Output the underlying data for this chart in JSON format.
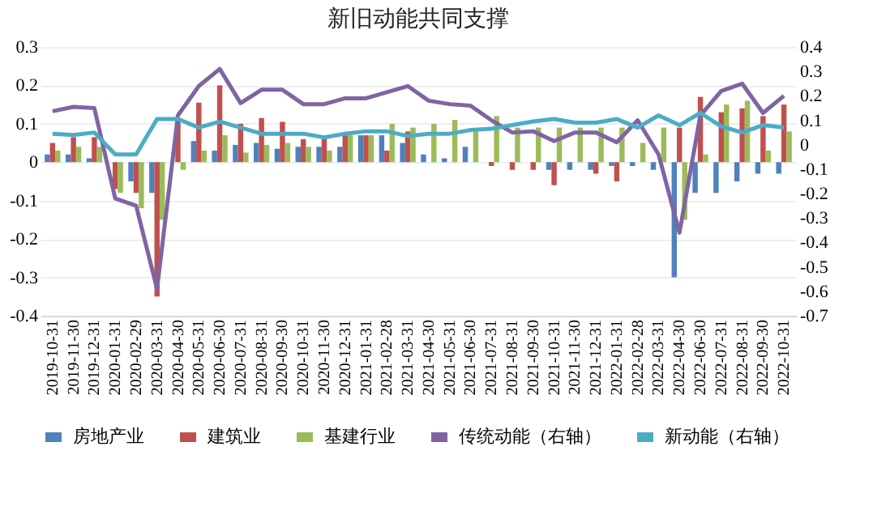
{
  "chart_data": {
    "type": "bar",
    "title": "新旧动能共同支撑",
    "categories": [
      "2019-10-31",
      "2019-11-30",
      "2019-12-31",
      "2020-01-31",
      "2020-02-29",
      "2020-03-31",
      "2020-04-30",
      "2020-05-31",
      "2020-06-30",
      "2020-07-31",
      "2020-08-31",
      "2020-09-30",
      "2020-10-31",
      "2020-11-30",
      "2020-12-31",
      "2021-01-31",
      "2021-02-28",
      "2021-03-31",
      "2021-04-30",
      "2021-05-31",
      "2021-06-30",
      "2021-07-31",
      "2021-08-31",
      "2021-09-30",
      "2021-10-31",
      "2021-11-30",
      "2021-12-31",
      "2022-01-31",
      "2022-02-28",
      "2022-03-31",
      "2022-04-30",
      "2022-06-30",
      "2022-07-31",
      "2022-08-31",
      "2022-09-30",
      "2022-10-31"
    ],
    "series": [
      {
        "name": "房地产业",
        "color": "#4f81bd",
        "values": [
          0.02,
          0.02,
          0.01,
          null,
          -0.05,
          -0.08,
          null,
          0.055,
          0.03,
          0.045,
          0.05,
          0.035,
          0.04,
          0.04,
          0.04,
          0.07,
          0.07,
          0.05,
          0.02,
          0.01,
          0.04,
          0,
          0,
          0,
          -0.02,
          -0.02,
          -0.02,
          -0.01,
          -0.01,
          -0.02,
          -0.3,
          -0.08,
          -0.08,
          -0.05,
          -0.03,
          -0.03
        ]
      },
      {
        "name": "建筑业",
        "color": "#c0504d",
        "values": [
          0.05,
          0.065,
          0.065,
          -0.07,
          -0.08,
          -0.35,
          0.11,
          0.155,
          0.2,
          0.1,
          0.115,
          0.105,
          0.06,
          0.06,
          0.07,
          0.07,
          0.03,
          0.08,
          0,
          0,
          0,
          -0.01,
          -0.02,
          -0.02,
          -0.06,
          0,
          -0.03,
          -0.05,
          0,
          0,
          0.09,
          0.17,
          0.13,
          0.14,
          0.12,
          0.15
        ]
      },
      {
        "name": "基建行业",
        "color": "#9bbb59",
        "values": [
          0.03,
          0.04,
          0.04,
          -0.08,
          -0.12,
          -0.15,
          -0.02,
          0.03,
          0.07,
          0.025,
          0.045,
          0.05,
          0.04,
          0.03,
          0.07,
          0.07,
          0.1,
          0.09,
          0.1,
          0.11,
          0.08,
          0.12,
          0.09,
          0.09,
          0.09,
          0.09,
          0.09,
          0.09,
          0.05,
          0.09,
          -0.15,
          0.02,
          0.15,
          0.16,
          0.03,
          0.08
        ]
      },
      {
        "name": "传统动能（右轴）",
        "type": "line",
        "axis": "y2",
        "color": "#8064a2",
        "values": [
          0.137,
          0.155,
          0.15,
          -0.22,
          -0.25,
          -0.59,
          0.12,
          0.24,
          0.31,
          0.17,
          0.225,
          0.225,
          0.166,
          0.166,
          0.19,
          0.19,
          0.215,
          0.24,
          0.18,
          0.166,
          0.16,
          0.1,
          0.05,
          0.055,
          0.015,
          0.05,
          0.05,
          0.01,
          0.1,
          -0.04,
          -0.36,
          0.12,
          0.22,
          0.25,
          0.13,
          0.2
        ]
      },
      {
        "name": "新动能（右轴）",
        "type": "line",
        "axis": "y2",
        "color": "#4bacc6",
        "values": [
          0.045,
          0.04,
          0.05,
          -0.04,
          -0.04,
          0.105,
          0.105,
          0.07,
          0.095,
          0.07,
          0.045,
          0.045,
          0.045,
          0.03,
          0.045,
          0.055,
          0.055,
          0.035,
          0.045,
          0.045,
          0.06,
          0.065,
          0.08,
          0.095,
          0.105,
          0.09,
          0.09,
          0.105,
          0.07,
          0.12,
          0.08,
          0.13,
          0.075,
          0.05,
          0.08,
          0.07
        ]
      }
    ],
    "ylim": [
      -0.4,
      0.3
    ],
    "yticks": [
      -0.4,
      -0.3,
      -0.2,
      -0.1,
      0,
      0.1,
      0.2,
      0.3
    ],
    "y2lim": [
      -0.7,
      0.4
    ],
    "y2ticks": [
      -0.7,
      -0.6,
      -0.5,
      -0.4,
      -0.3,
      -0.2,
      -0.1,
      0,
      0.1,
      0.2,
      0.3,
      0.4
    ],
    "grid": "y",
    "legend": "bottom"
  }
}
